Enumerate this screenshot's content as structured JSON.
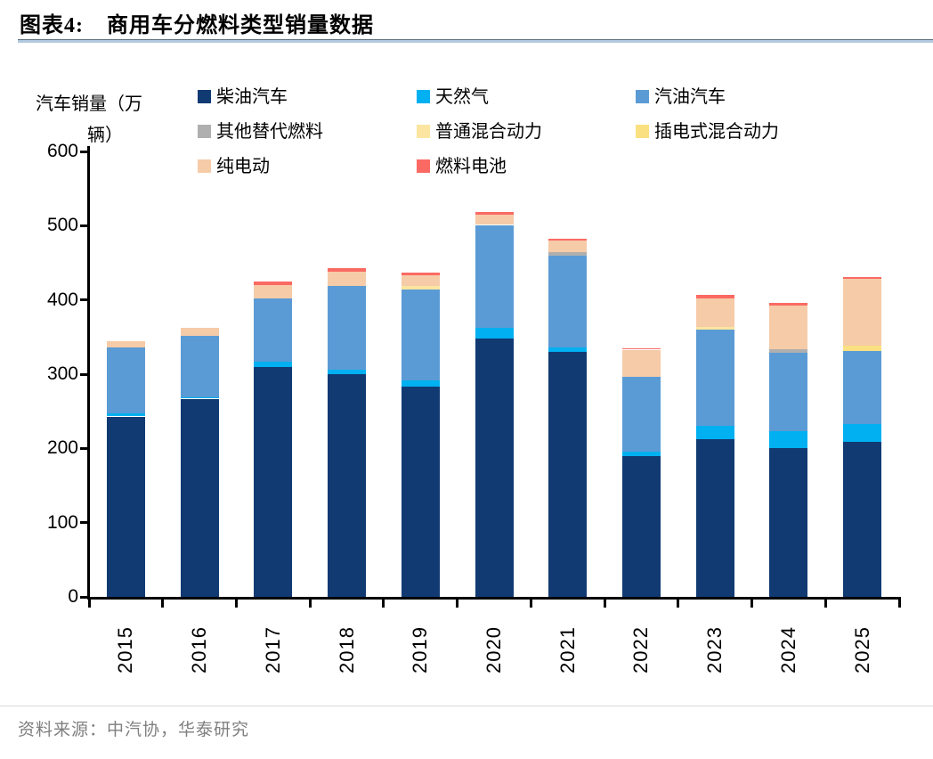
{
  "title": {
    "prefix": "图表4:",
    "text": "商用车分燃料类型销量数据"
  },
  "axis": {
    "unit_line1": "汽车销量（万",
    "unit_line2": "辆）"
  },
  "source": {
    "text": "资料来源：中汽协，华泰研究"
  },
  "chart_data": {
    "type": "bar",
    "stacked": true,
    "title": "商用车分燃料类型销量数据",
    "ylabel": "汽车销量（万辆）",
    "xlabel": "",
    "ylim": [
      0,
      600
    ],
    "yticks": [
      0,
      100,
      200,
      300,
      400,
      500,
      600
    ],
    "grid": false,
    "legend_position": "top",
    "categories": [
      "2015",
      "2016",
      "2017",
      "2018",
      "2019",
      "2020",
      "2021",
      "2022",
      "2023",
      "2024",
      "2025"
    ],
    "series": [
      {
        "name": "柴油汽车",
        "color": "#113A73",
        "values": [
          243,
          267,
          310,
          300,
          283,
          348,
          330,
          190,
          212,
          200,
          209
        ]
      },
      {
        "name": "天然气",
        "color": "#00B0F0",
        "values": [
          4,
          2,
          7,
          6,
          9,
          15,
          6,
          6,
          18,
          23,
          24
        ]
      },
      {
        "name": "汽油汽车",
        "color": "#5B9BD5",
        "values": [
          89,
          83,
          85,
          113,
          122,
          138,
          124,
          101,
          130,
          106,
          98
        ]
      },
      {
        "name": "其他替代燃料",
        "color": "#AFAFAF",
        "values": [
          0,
          0,
          0,
          0,
          0,
          0,
          5,
          0,
          0,
          5,
          0
        ]
      },
      {
        "name": "普通混合动力",
        "color": "#FBE5A0",
        "values": [
          0,
          0,
          0,
          0,
          5,
          0,
          0,
          0,
          4,
          0,
          0
        ]
      },
      {
        "name": "插电式混合动力",
        "color": "#FAE081",
        "values": [
          0,
          0,
          0,
          0,
          0,
          0,
          0,
          0,
          0,
          0,
          7
        ]
      },
      {
        "name": "纯电动",
        "color": "#F6CBA8",
        "values": [
          9,
          11,
          18,
          19,
          14,
          14,
          15,
          36,
          38,
          58,
          90
        ]
      },
      {
        "name": "燃料电池",
        "color": "#FA6A63",
        "values": [
          0,
          0,
          5,
          5,
          4,
          4,
          3,
          2,
          5,
          4,
          3
        ]
      }
    ],
    "totals": [
      345,
      363,
      425,
      443,
      437,
      519,
      483,
      335,
      407,
      396,
      431
    ]
  }
}
